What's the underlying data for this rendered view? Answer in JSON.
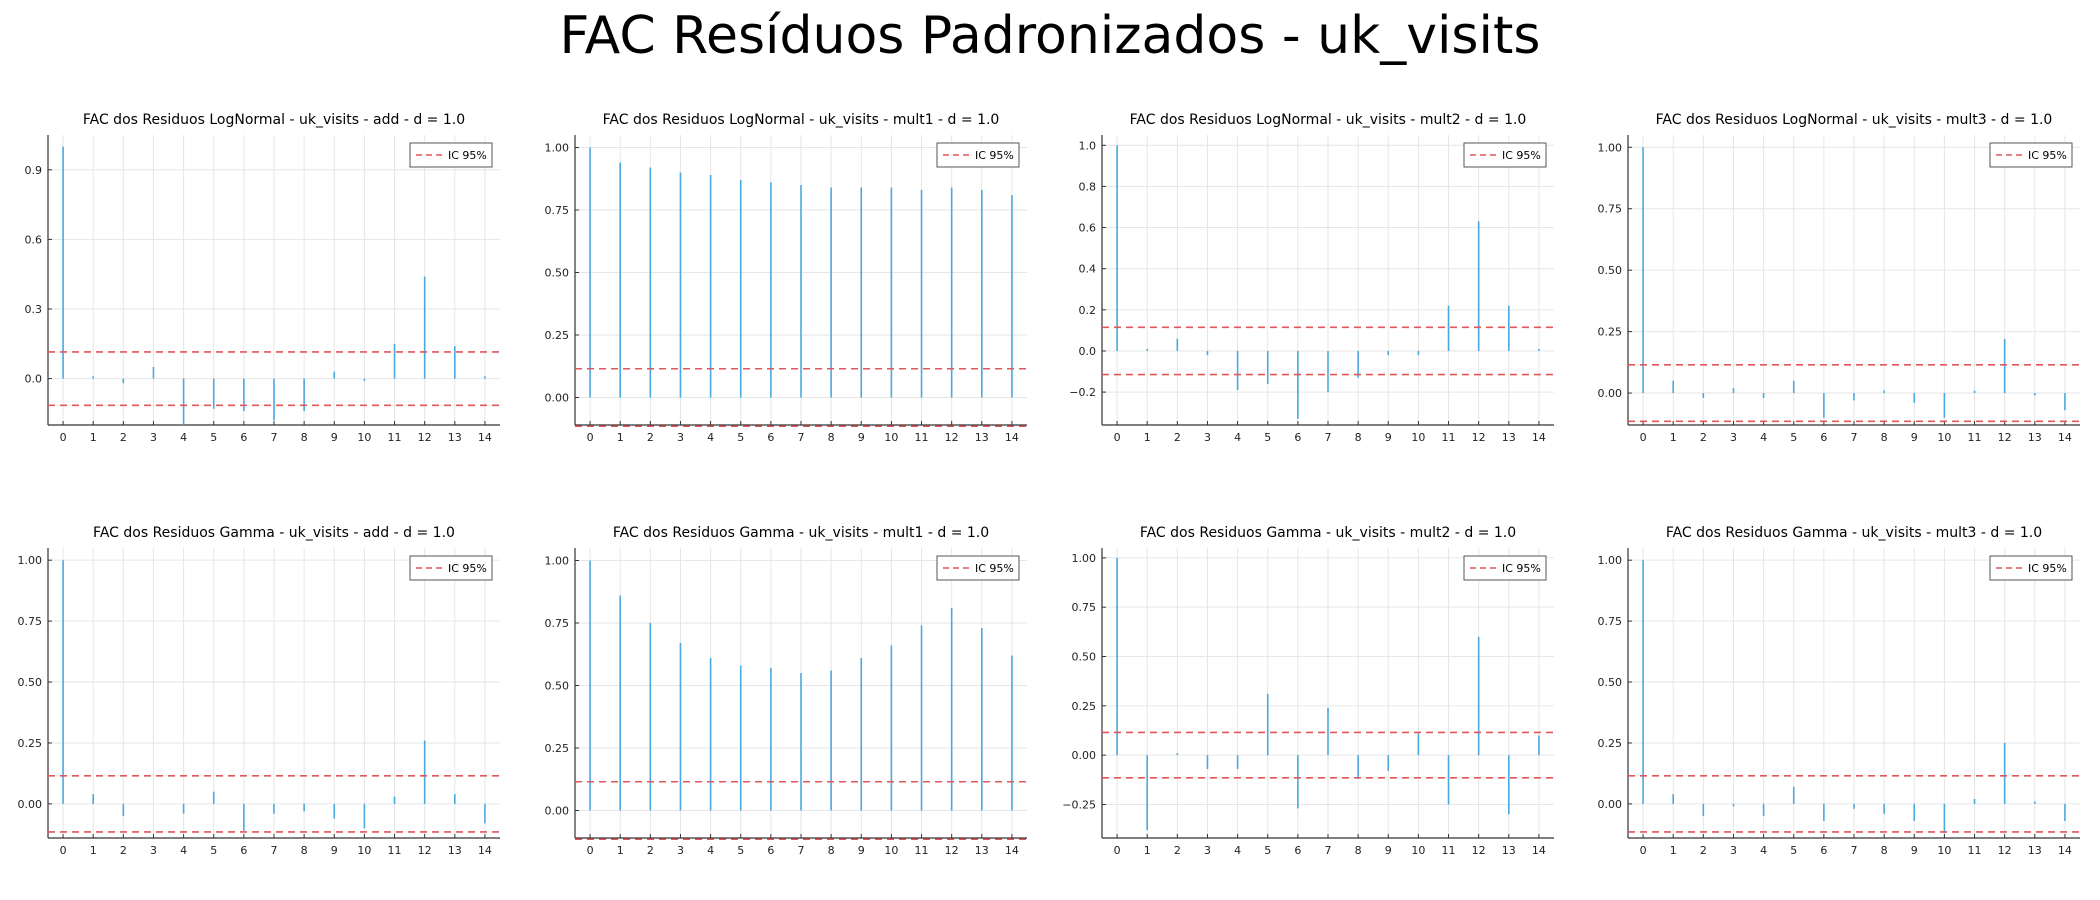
{
  "title": "FAC Resíduos Padronizados - uk_visits",
  "colors": {
    "bars": "#4aa8e0",
    "ci": "#e0575a",
    "grid": "#e6e6e6",
    "axis": "#333333"
  },
  "chart_data": [
    {
      "type": "bar",
      "title": "FAC dos Residuos  LogNormal - uk_visits - add - d = 1.0",
      "legend": "IC 95%",
      "legend_position": "top-right",
      "x": [
        0,
        1,
        2,
        3,
        4,
        5,
        6,
        7,
        8,
        9,
        10,
        11,
        12,
        13,
        14
      ],
      "values": [
        1.0,
        0.01,
        -0.02,
        0.05,
        -0.2,
        -0.13,
        -0.14,
        -0.18,
        -0.14,
        0.03,
        -0.01,
        0.15,
        0.44,
        0.14,
        0.01
      ],
      "ci": 0.115,
      "ylim": [
        -0.2,
        1.05
      ],
      "yticks": [
        0.0,
        0.3,
        0.6,
        0.9
      ],
      "ytick_labels": [
        "0.0",
        "0.3",
        "0.6",
        "0.9"
      ],
      "grid": true
    },
    {
      "type": "bar",
      "title": "FAC dos Residuos  LogNormal - uk_visits - mult1 - d = 1.0",
      "legend": "IC 95%",
      "legend_position": "top-right",
      "x": [
        0,
        1,
        2,
        3,
        4,
        5,
        6,
        7,
        8,
        9,
        10,
        11,
        12,
        13,
        14
      ],
      "values": [
        1.0,
        0.94,
        0.92,
        0.9,
        0.89,
        0.87,
        0.86,
        0.85,
        0.84,
        0.84,
        0.84,
        0.83,
        0.84,
        0.83,
        0.81
      ],
      "ci": 0.115,
      "ylim": [
        -0.11,
        1.05
      ],
      "yticks": [
        0.0,
        0.25,
        0.5,
        0.75,
        1.0
      ],
      "ytick_labels": [
        "0.00",
        "0.25",
        "0.50",
        "0.75",
        "1.00"
      ],
      "grid": true
    },
    {
      "type": "bar",
      "title": "FAC dos Residuos  LogNormal - uk_visits - mult2 - d = 1.0",
      "legend": "IC 95%",
      "legend_position": "top-right",
      "x": [
        0,
        1,
        2,
        3,
        4,
        5,
        6,
        7,
        8,
        9,
        10,
        11,
        12,
        13,
        14
      ],
      "values": [
        1.0,
        0.01,
        0.06,
        -0.02,
        -0.19,
        -0.16,
        -0.33,
        -0.2,
        -0.13,
        -0.02,
        -0.02,
        0.22,
        0.63,
        0.22,
        0.01
      ],
      "ci": 0.115,
      "ylim": [
        -0.36,
        1.05
      ],
      "yticks": [
        -0.2,
        0.0,
        0.2,
        0.4,
        0.6,
        0.8,
        1.0
      ],
      "ytick_labels": [
        "−0.2",
        "0.0",
        "0.2",
        "0.4",
        "0.6",
        "0.8",
        "1.0"
      ],
      "grid": true
    },
    {
      "type": "bar",
      "title": "FAC dos Residuos  LogNormal - uk_visits - mult3 - d = 1.0",
      "legend": "IC 95%",
      "legend_position": "top-right",
      "x": [
        0,
        1,
        2,
        3,
        4,
        5,
        6,
        7,
        8,
        9,
        10,
        11,
        12,
        13,
        14
      ],
      "values": [
        1.0,
        0.05,
        -0.02,
        0.02,
        -0.02,
        0.05,
        -0.1,
        -0.03,
        0.01,
        -0.04,
        -0.1,
        0.01,
        0.22,
        -0.01,
        -0.07
      ],
      "ci": 0.115,
      "ylim": [
        -0.13,
        1.05
      ],
      "yticks": [
        0.0,
        0.25,
        0.5,
        0.75,
        1.0
      ],
      "ytick_labels": [
        "0.00",
        "0.25",
        "0.50",
        "0.75",
        "1.00"
      ],
      "grid": true
    },
    {
      "type": "bar",
      "title": "FAC dos Residuos  Gamma - uk_visits - add - d = 1.0",
      "legend": "IC 95%",
      "legend_position": "top-right",
      "x": [
        0,
        1,
        2,
        3,
        4,
        5,
        6,
        7,
        8,
        9,
        10,
        11,
        12,
        13,
        14
      ],
      "values": [
        1.0,
        0.04,
        -0.05,
        0.0,
        -0.04,
        0.05,
        -0.11,
        -0.04,
        -0.03,
        -0.06,
        -0.1,
        0.03,
        0.26,
        0.04,
        -0.08
      ],
      "ci": 0.115,
      "ylim": [
        -0.14,
        1.05
      ],
      "yticks": [
        0.0,
        0.25,
        0.5,
        0.75,
        1.0
      ],
      "ytick_labels": [
        "0.00",
        "0.25",
        "0.50",
        "0.75",
        "1.00"
      ],
      "grid": true
    },
    {
      "type": "bar",
      "title": "FAC dos Residuos  Gamma - uk_visits - mult1 - d = 1.0",
      "legend": "IC 95%",
      "legend_position": "top-right",
      "x": [
        0,
        1,
        2,
        3,
        4,
        5,
        6,
        7,
        8,
        9,
        10,
        11,
        12,
        13,
        14
      ],
      "values": [
        1.0,
        0.86,
        0.75,
        0.67,
        0.61,
        0.58,
        0.57,
        0.55,
        0.56,
        0.61,
        0.66,
        0.74,
        0.81,
        0.73,
        0.62
      ],
      "ci": 0.115,
      "ylim": [
        -0.11,
        1.05
      ],
      "yticks": [
        0.0,
        0.25,
        0.5,
        0.75,
        1.0
      ],
      "ytick_labels": [
        "0.00",
        "0.25",
        "0.50",
        "0.75",
        "1.00"
      ],
      "grid": true
    },
    {
      "type": "bar",
      "title": "FAC dos Residuos  Gamma - uk_visits - mult2 - d = 1.0",
      "legend": "IC 95%",
      "legend_position": "top-right",
      "x": [
        0,
        1,
        2,
        3,
        4,
        5,
        6,
        7,
        8,
        9,
        10,
        11,
        12,
        13,
        14
      ],
      "values": [
        1.0,
        -0.38,
        0.01,
        -0.07,
        -0.07,
        0.31,
        -0.27,
        0.24,
        -0.12,
        -0.08,
        0.11,
        -0.25,
        0.6,
        -0.3,
        0.1
      ],
      "ci": 0.115,
      "ylim": [
        -0.42,
        1.05
      ],
      "yticks": [
        -0.25,
        0.0,
        0.25,
        0.5,
        0.75,
        1.0
      ],
      "ytick_labels": [
        "−0.25",
        "0.00",
        "0.25",
        "0.50",
        "0.75",
        "1.00"
      ],
      "grid": true
    },
    {
      "type": "bar",
      "title": "FAC dos Residuos  Gamma - uk_visits - mult3 - d = 1.0",
      "legend": "IC 95%",
      "legend_position": "top-right",
      "x": [
        0,
        1,
        2,
        3,
        4,
        5,
        6,
        7,
        8,
        9,
        10,
        11,
        12,
        13,
        14
      ],
      "values": [
        1.0,
        0.04,
        -0.05,
        -0.01,
        -0.05,
        0.07,
        -0.07,
        -0.02,
        -0.04,
        -0.07,
        -0.12,
        0.02,
        0.25,
        0.01,
        -0.07
      ],
      "ci": 0.115,
      "ylim": [
        -0.14,
        1.05
      ],
      "yticks": [
        0.0,
        0.25,
        0.5,
        0.75,
        1.0
      ],
      "ytick_labels": [
        "0.00",
        "0.25",
        "0.50",
        "0.75",
        "1.00"
      ],
      "grid": true
    }
  ]
}
